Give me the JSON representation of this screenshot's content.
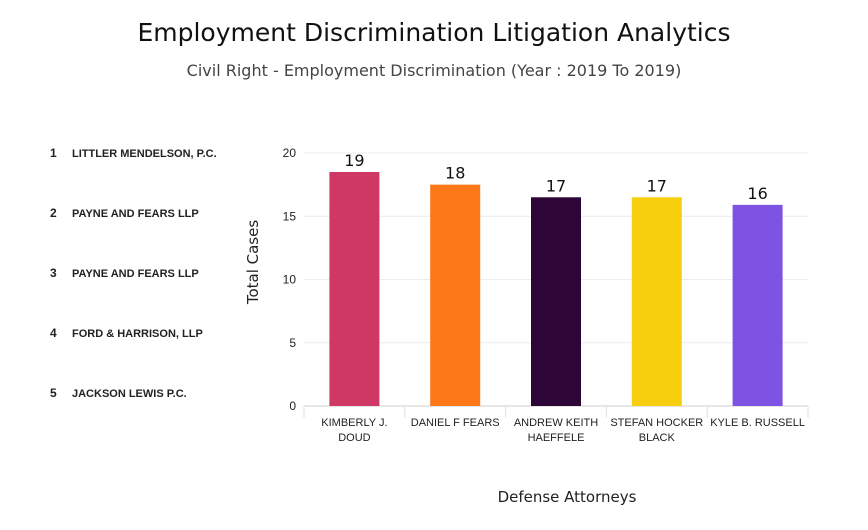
{
  "chart_data": {
    "type": "bar",
    "title": "Employment Discrimination Litigation Analytics",
    "subtitle": "Civil Right - Employment Discrimination (Year : 2019 To 2019)",
    "xlabel": "Defense Attorneys",
    "ylabel": "Total Cases",
    "ylim": [
      0,
      20
    ],
    "yticks": [
      0,
      5,
      10,
      15,
      20
    ],
    "grid": true,
    "categories": [
      [
        "KIMBERLY J.",
        "DOUD"
      ],
      [
        "DANIEL F FEARS"
      ],
      [
        "ANDREW KEITH",
        "HAEFFELE"
      ],
      [
        "STEFAN HOCKER",
        "BLACK"
      ],
      [
        "KYLE B. RUSSELL"
      ]
    ],
    "values": [
      18.5,
      17.5,
      16.5,
      16.5,
      15.9
    ],
    "data_labels": [
      "19",
      "18",
      "17",
      "17",
      "16"
    ],
    "colors": [
      "#cf3765",
      "#fb7718",
      "#2e0537",
      "#f8cf0e",
      "#7e52e2"
    ]
  },
  "firms": [
    {
      "rank": "1",
      "name": "LITTLER MENDELSON, P.C."
    },
    {
      "rank": "2",
      "name": "PAYNE AND FEARS LLP"
    },
    {
      "rank": "3",
      "name": "PAYNE AND FEARS LLP"
    },
    {
      "rank": "4",
      "name": "FORD & HARRISON, LLP"
    },
    {
      "rank": "5",
      "name": "JACKSON LEWIS P.C."
    }
  ]
}
